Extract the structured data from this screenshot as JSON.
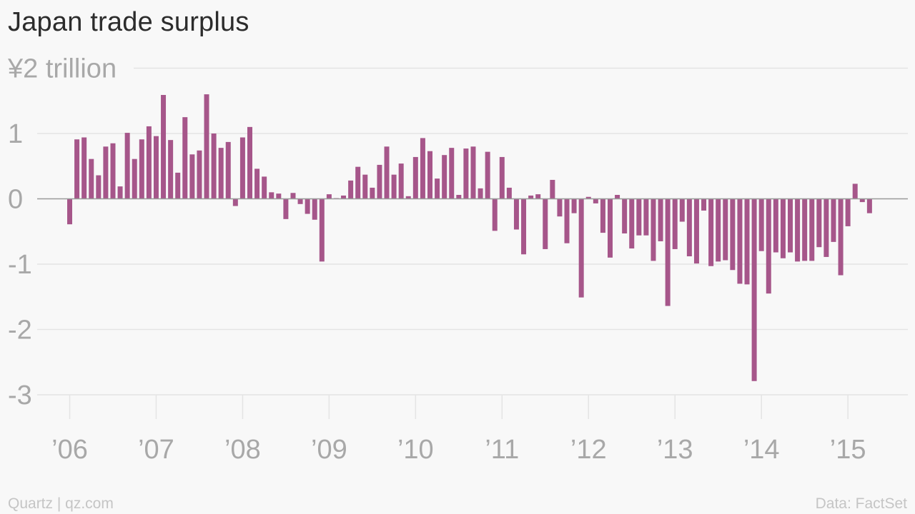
{
  "header": {
    "title": "Japan trade surplus"
  },
  "footer": {
    "source_left": "Quartz | qz.com",
    "source_right": "Data: FactSet"
  },
  "colors": {
    "bar": "#a6568a",
    "gridline": "#e4e4e4",
    "zero_line": "#9a9a9a",
    "tick_label": "#a8a8a8",
    "background": "#f8f8f8"
  },
  "chart_data": {
    "type": "bar",
    "title": "Japan trade surplus",
    "unit_label": "¥2 trillion",
    "ylim": [
      -3,
      2
    ],
    "y_ticks": [
      {
        "value": 2,
        "label": "¥2 trillion"
      },
      {
        "value": 1,
        "label": "1"
      },
      {
        "value": 0,
        "label": "0"
      },
      {
        "value": -1,
        "label": "-1"
      },
      {
        "value": -2,
        "label": "-2"
      },
      {
        "value": -3,
        "label": "-3"
      }
    ],
    "x_ticks": [
      {
        "month_index": 0,
        "label": "’06"
      },
      {
        "month_index": 12,
        "label": "’07"
      },
      {
        "month_index": 24,
        "label": "’08"
      },
      {
        "month_index": 36,
        "label": "’09"
      },
      {
        "month_index": 48,
        "label": "’10"
      },
      {
        "month_index": 60,
        "label": "’11"
      },
      {
        "month_index": 72,
        "label": "’12"
      },
      {
        "month_index": 84,
        "label": "’13"
      },
      {
        "month_index": 96,
        "label": "’14"
      },
      {
        "month_index": 108,
        "label": "’15"
      }
    ],
    "grid": true,
    "start": "2006-01",
    "frequency": "monthly",
    "values": [
      -0.39,
      0.91,
      0.94,
      0.61,
      0.36,
      0.8,
      0.85,
      0.19,
      1.01,
      0.61,
      0.91,
      1.11,
      0.96,
      1.59,
      0.9,
      0.4,
      1.25,
      0.68,
      0.74,
      1.6,
      1.0,
      0.78,
      0.87,
      -0.11,
      0.94,
      1.1,
      0.46,
      0.34,
      0.1,
      0.08,
      -0.31,
      0.09,
      -0.08,
      -0.23,
      -0.32,
      -0.96,
      0.07,
      0.0,
      0.05,
      0.28,
      0.49,
      0.37,
      0.17,
      0.52,
      0.8,
      0.37,
      0.54,
      0.04,
      0.64,
      0.93,
      0.73,
      0.31,
      0.67,
      0.78,
      0.06,
      0.77,
      0.8,
      0.16,
      0.72,
      -0.49,
      0.64,
      0.17,
      -0.47,
      -0.85,
      0.05,
      0.07,
      -0.77,
      0.29,
      -0.27,
      -0.68,
      -0.22,
      -1.51,
      0.03,
      -0.07,
      -0.52,
      -0.9,
      0.06,
      -0.53,
      -0.76,
      -0.56,
      -0.56,
      -0.95,
      -0.65,
      -1.64,
      -0.77,
      -0.35,
      -0.88,
      -0.99,
      -0.18,
      -1.03,
      -0.96,
      -0.94,
      -1.09,
      -1.3,
      -1.31,
      -2.79,
      -0.8,
      -1.45,
      -0.82,
      -0.91,
      -0.82,
      -0.96,
      -0.95,
      -0.95,
      -0.74,
      -0.89,
      -0.66,
      -1.17,
      -0.42,
      0.23,
      -0.05,
      -0.22
    ]
  }
}
